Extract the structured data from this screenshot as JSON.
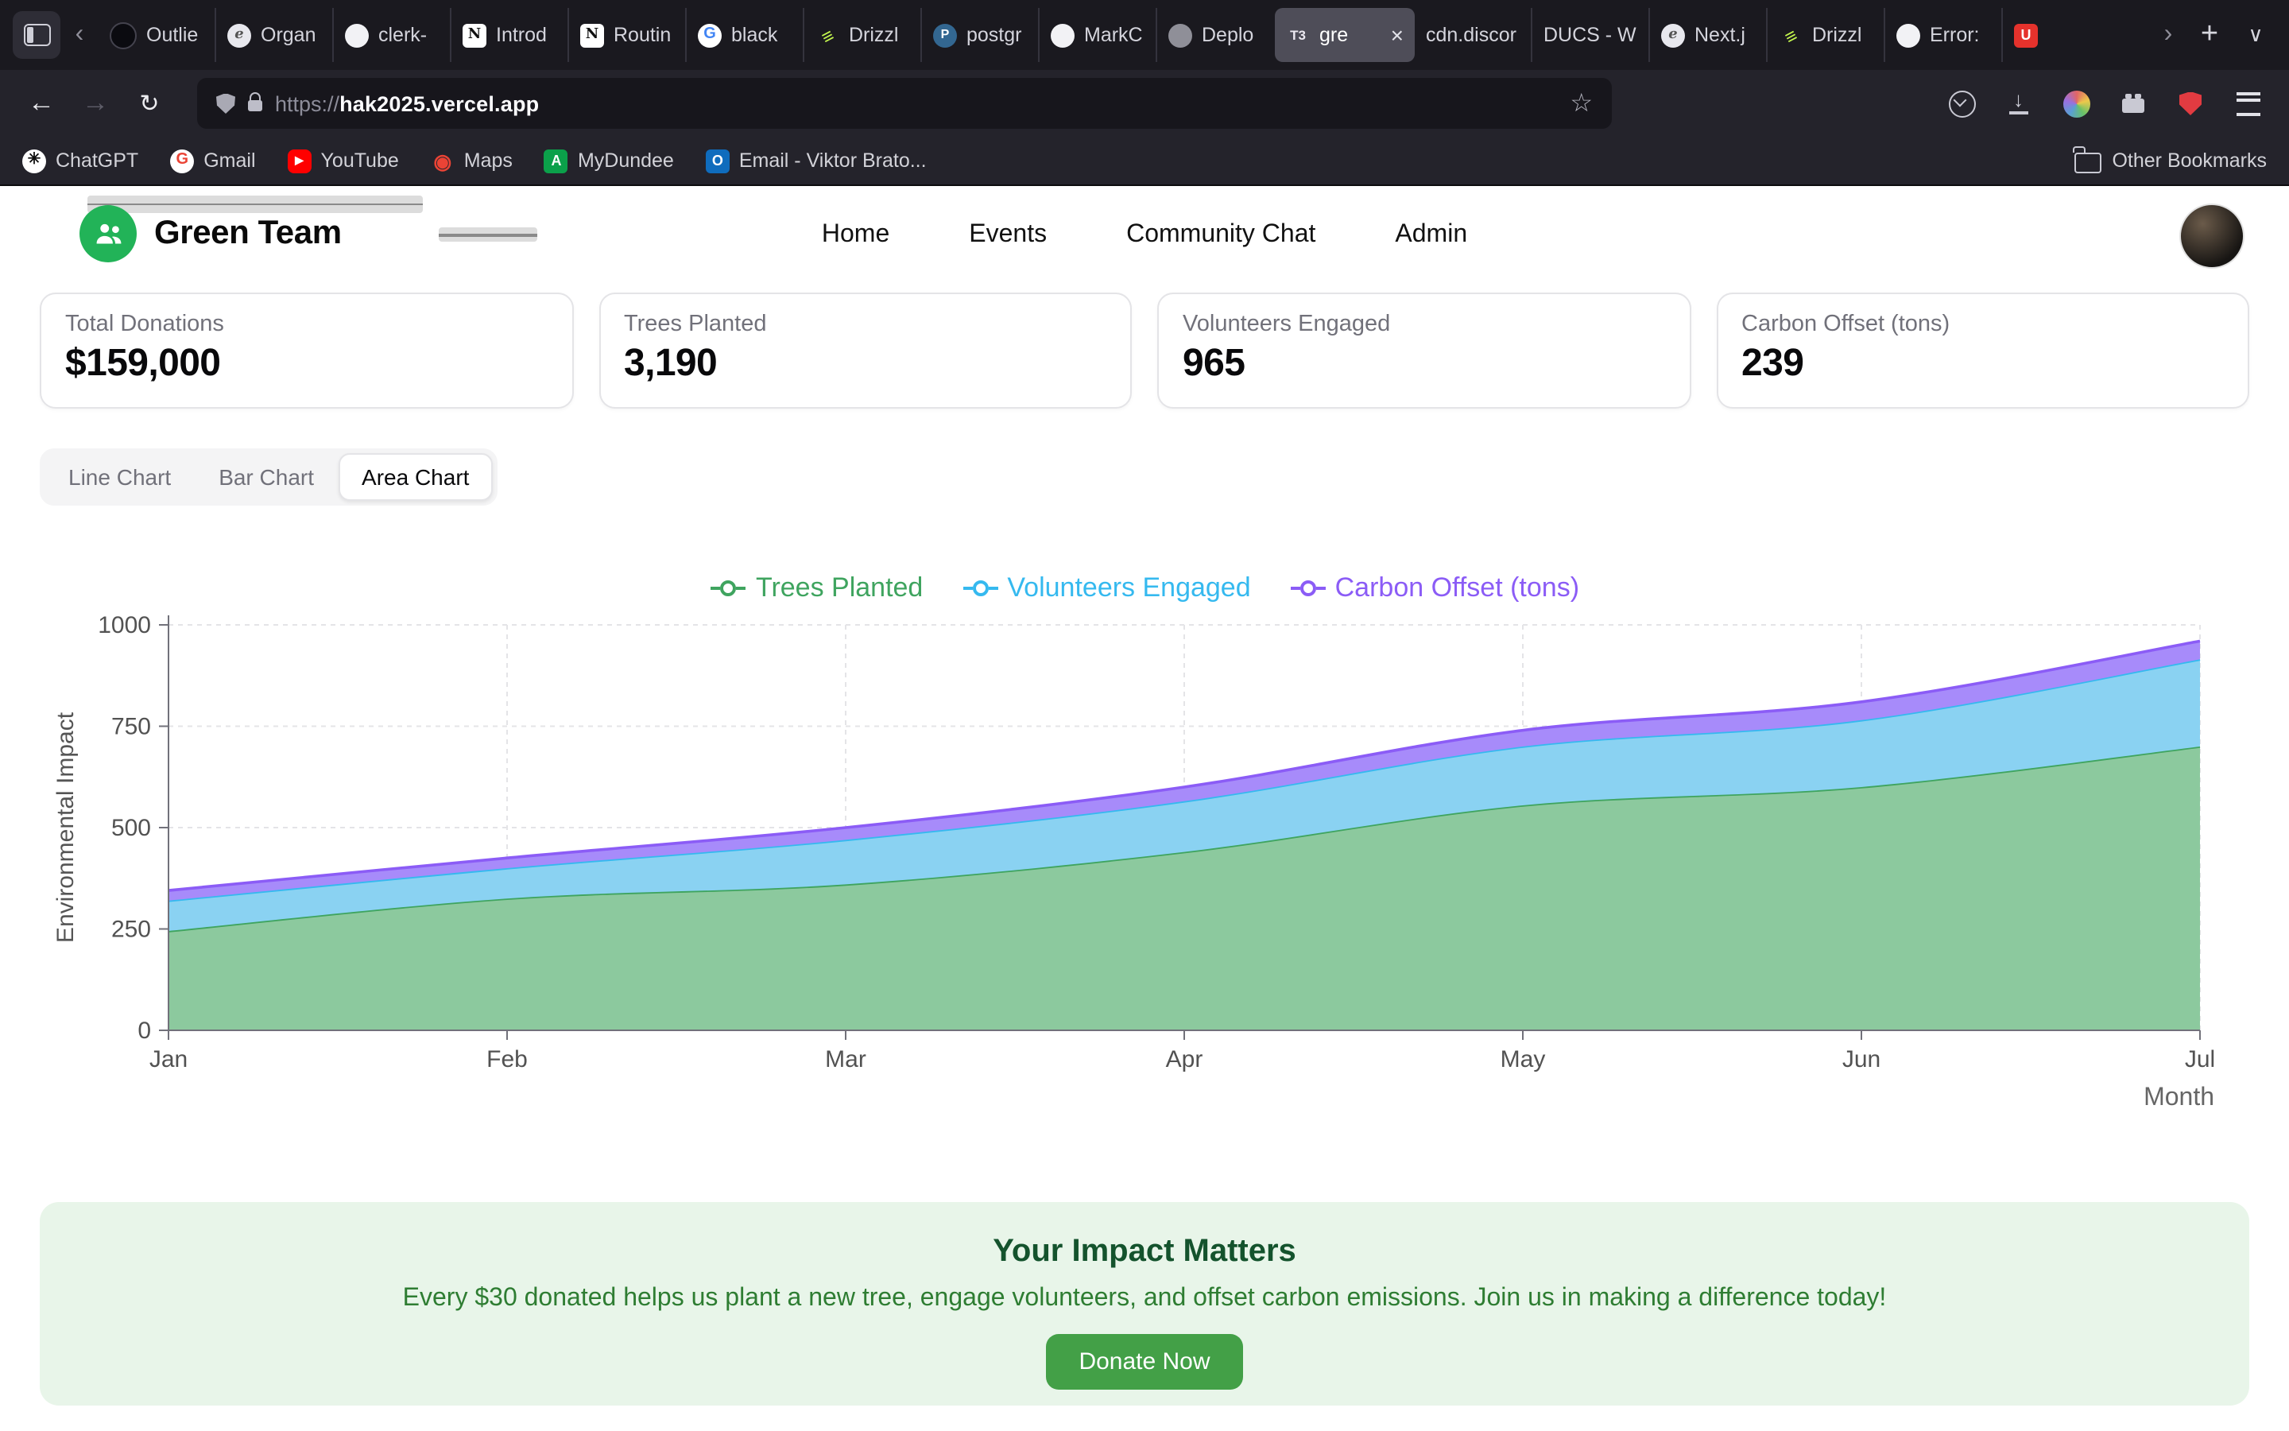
{
  "browser": {
    "tab_strip": {
      "scroll_left": "‹",
      "scroll_right": "›",
      "new_tab": "+",
      "list_all_tabs": "∨"
    },
    "tabs": [
      {
        "title": "Outlie",
        "icon": "outlier-icon"
      },
      {
        "title": "Organ",
        "icon": "e-docs-icon"
      },
      {
        "title": "clerk-",
        "icon": "github-icon"
      },
      {
        "title": "Introd",
        "icon": "notion-icon"
      },
      {
        "title": "Routin",
        "icon": "notion-icon"
      },
      {
        "title": "black",
        "icon": "google-icon"
      },
      {
        "title": "Drizzl",
        "icon": "drizzle-icon"
      },
      {
        "title": "postgr",
        "icon": "postgres-icon"
      },
      {
        "title": "MarkC",
        "icon": "github-icon"
      },
      {
        "title": "Deplo",
        "icon": "generic-page-icon"
      },
      {
        "title": "gre",
        "icon": "t3-icon",
        "active": true,
        "closable": true
      },
      {
        "title": "cdn.discor",
        "icon": null
      },
      {
        "title": "DUCS - W",
        "icon": null
      },
      {
        "title": "Next.j",
        "icon": "e-docs-icon"
      },
      {
        "title": "Drizzl",
        "icon": "drizzle-icon"
      },
      {
        "title": "Error:",
        "icon": "github-icon"
      },
      {
        "title": "",
        "icon": "udemy-icon"
      }
    ],
    "toolbar": {
      "url_scheme": "https://",
      "url_host": "hak2025.vercel.app"
    },
    "bookmarks": [
      {
        "label": "ChatGPT",
        "icon": "chatgpt-icon"
      },
      {
        "label": "Gmail",
        "icon": "gmail-icon"
      },
      {
        "label": "YouTube",
        "icon": "youtube-icon"
      },
      {
        "label": "Maps",
        "icon": "maps-icon"
      },
      {
        "label": "MyDundee",
        "icon": "mydundee-icon"
      },
      {
        "label": "Email - Viktor Brato...",
        "icon": "outlook-icon"
      }
    ],
    "other_bookmarks_label": "Other Bookmarks"
  },
  "site": {
    "brand": "Green Team",
    "nav": [
      "Home",
      "Events",
      "Community Chat",
      "Admin"
    ],
    "stats": [
      {
        "label": "Total Donations",
        "value": "$159,000"
      },
      {
        "label": "Trees Planted",
        "value": "3,190"
      },
      {
        "label": "Volunteers Engaged",
        "value": "965"
      },
      {
        "label": "Carbon Offset (tons)",
        "value": "239"
      }
    ],
    "chart_tabs": [
      {
        "label": "Line Chart",
        "active": false
      },
      {
        "label": "Bar Chart",
        "active": false
      },
      {
        "label": "Area Chart",
        "active": true
      }
    ],
    "impact": {
      "title": "Your Impact Matters",
      "body": "Every $30 donated helps us plant a new tree, engage volunteers, and offset carbon emissions. Join us in making a difference today!",
      "button": "Donate Now"
    },
    "theme": {
      "brand_green": "#22b358",
      "banner_bg": "#e8f5e9",
      "banner_title_color": "#14532d",
      "banner_text_color": "#2e7d32",
      "button_bg": "#43a047"
    }
  },
  "chart_data": {
    "type": "area",
    "stacked": true,
    "x": [
      "Jan",
      "Feb",
      "Mar",
      "Apr",
      "May",
      "Jun",
      "Jul"
    ],
    "series": [
      {
        "name": "Trees Planted",
        "color": "#3fa45f",
        "fill": "#8cc99e",
        "values": [
          245,
          325,
          360,
          440,
          555,
          600,
          700
        ]
      },
      {
        "name": "Volunteers Engaged",
        "color": "#35b9ef",
        "fill": "#8ad2f2",
        "values": [
          75,
          75,
          110,
          125,
          145,
          165,
          215
        ]
      },
      {
        "name": "Carbon Offset (tons)",
        "color": "#8b5cf6",
        "fill": "#a78bfa",
        "values": [
          25,
          25,
          30,
          35,
          40,
          45,
          45
        ]
      }
    ],
    "title": "",
    "xlabel": "Month",
    "ylabel": "Environmental Impact",
    "ylim": [
      0,
      1000
    ],
    "yticks": [
      0,
      250,
      500,
      750,
      1000
    ],
    "grid": true,
    "legend_position": "top"
  }
}
